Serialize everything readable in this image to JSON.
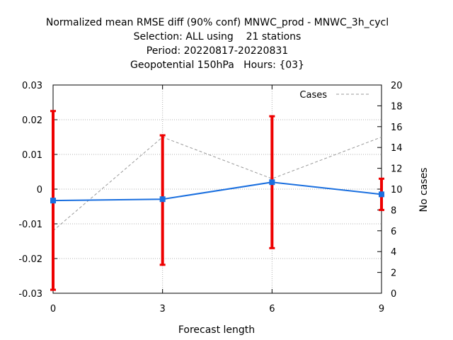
{
  "chart_data": {
    "type": "line",
    "title_lines": [
      "Normalized mean RMSE diff (90% conf) MNWC_prod - MNWC_3h_cycl",
      "Selection: ALL using    21 stations",
      "Period: 20220817-20220831",
      "Geopotential 150hPa   Hours: {03}"
    ],
    "xlabel": "Forecast length",
    "ylabel": "",
    "y2label": "No cases",
    "x": [
      0,
      3,
      6,
      9
    ],
    "xlim": [
      0,
      9
    ],
    "ylim": [
      -0.03,
      0.03
    ],
    "y2lim": [
      0,
      20
    ],
    "x_ticks": [
      0,
      3,
      6,
      9
    ],
    "x_tick_labels": [
      "0",
      "3",
      "6",
      "9"
    ],
    "y_ticks": [
      -0.03,
      -0.02,
      -0.01,
      0,
      0.01,
      0.02,
      0.03
    ],
    "y_tick_labels": [
      "-0.03",
      "-0.02",
      "-0.01",
      "0",
      "0.01",
      "0.02",
      "0.03"
    ],
    "y2_ticks": [
      0,
      2,
      4,
      6,
      8,
      10,
      12,
      14,
      16,
      18,
      20
    ],
    "y2_tick_labels": [
      "0",
      "2",
      "4",
      "6",
      "8",
      "10",
      "12",
      "14",
      "16",
      "18",
      "20"
    ],
    "grid": true,
    "legend_position": "top-right",
    "series": [
      {
        "axis": "y",
        "values": [
          -0.0033,
          -0.0029,
          0.002,
          -0.0015
        ],
        "err_low": [
          -0.029,
          -0.0218,
          -0.017,
          -0.006
        ],
        "err_high": [
          0.0225,
          0.0155,
          0.021,
          0.003
        ],
        "color": "#1a6fdf",
        "errorbar_color": "#ee0000"
      },
      {
        "name": "Cases",
        "axis": "y2",
        "values": [
          6,
          15,
          11,
          15
        ],
        "color": "#999999",
        "dash": true
      }
    ]
  }
}
